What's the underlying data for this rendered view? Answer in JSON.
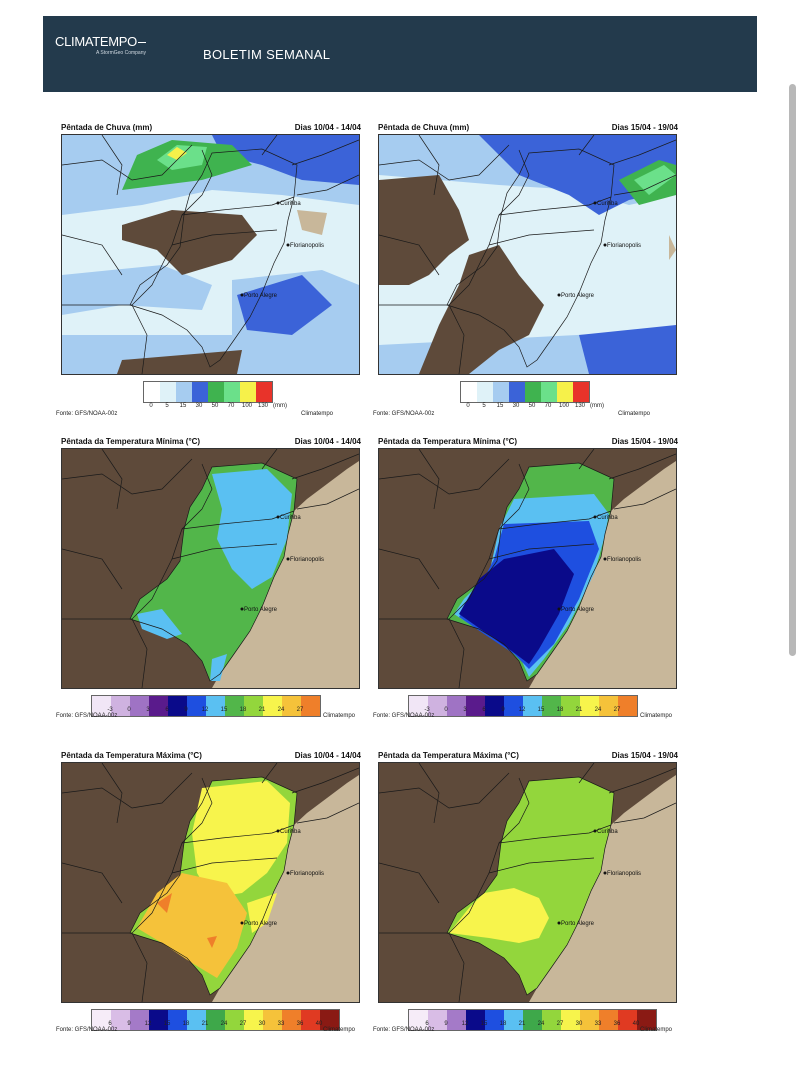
{
  "header": {
    "logo": "CLIMATEMPO",
    "logo_sub": "A StormGeo Company",
    "title": "BOLETIM SEMANAL"
  },
  "colors": {
    "header_bg": "#233a4c",
    "land_brown": "#5e4a3a",
    "ocean_beige": "#c8b79a"
  },
  "panels": [
    {
      "title": "Pêntada de Chuva (mm)",
      "dates": "Dias 10/04 - 14/04",
      "type": "rain"
    },
    {
      "title": "Pêntada de Chuva (mm)",
      "dates": "Dias 15/04 - 19/04",
      "type": "rain"
    },
    {
      "title": "Pêntada da Temperatura Mínima (°C)",
      "dates": "Dias 10/04 - 14/04",
      "type": "tmin"
    },
    {
      "title": "Pêntada da Temperatura Mínima (°C)",
      "dates": "Dias 15/04 - 19/04",
      "type": "tmin"
    },
    {
      "title": "Pêntada da Temperatura Máxima (°C)",
      "dates": "Dias 10/04 - 14/04",
      "type": "tmax"
    },
    {
      "title": "Pêntada da Temperatura Máxima (°C)",
      "dates": "Dias 15/04 - 19/04",
      "type": "tmax"
    }
  ],
  "legends": {
    "rain": {
      "ticks": [
        "0",
        "5",
        "15",
        "30",
        "50",
        "70",
        "100",
        "130"
      ],
      "unit": "(mm)",
      "colors": [
        "#ffffff",
        "#dff2f8",
        "#a6ccf0",
        "#3b63d8",
        "#3fb34f",
        "#6be08a",
        "#f6f14a",
        "#e8332a"
      ]
    },
    "tmin": {
      "ticks": [
        "-3",
        "0",
        "3",
        "6",
        "9",
        "12",
        "15",
        "18",
        "21",
        "24",
        "27"
      ],
      "colors": [
        "#f1e6f6",
        "#cfb2e0",
        "#9f73c4",
        "#5a1b8c",
        "#0a0a8a",
        "#1e4fe0",
        "#5ac0f2",
        "#52b64a",
        "#93d63c",
        "#f7f44c",
        "#f5c23a",
        "#ef7f2a"
      ]
    },
    "tmax": {
      "ticks": [
        "6",
        "9",
        "12",
        "15",
        "18",
        "21",
        "24",
        "27",
        "30",
        "33",
        "36",
        "40"
      ],
      "colors": [
        "#f6ecf8",
        "#d9bde6",
        "#a47ac8",
        "#0a0a8a",
        "#1e4fe0",
        "#5ac0f2",
        "#3ea84a",
        "#93d63c",
        "#f7f44c",
        "#f5c23a",
        "#ef7f2a",
        "#e03a22",
        "#8a1a14"
      ]
    }
  },
  "footer": {
    "fonte": "Fonte: GFS/NOAA-00z",
    "clima": "Climatempo"
  },
  "cities": [
    "Curitiba",
    "Florianopolis",
    "Porto Alegre"
  ]
}
